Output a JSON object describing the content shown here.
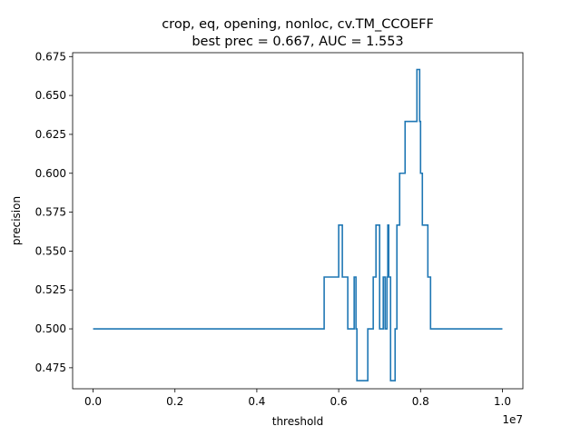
{
  "chart_data": {
    "type": "line",
    "title_line1": "crop, eq, opening, nonloc, cv.TM_CCOEFF",
    "title_line2": "best prec = 0.667, AUC = 1.553",
    "xlabel": "threshold",
    "ylabel": "precision",
    "x_offset_label": "1e7",
    "xlim": [
      -0.05,
      1.05
    ],
    "ylim": [
      0.4615,
      0.6775
    ],
    "x_ticks": [
      0.0,
      0.2,
      0.4,
      0.6,
      0.8,
      1.0
    ],
    "x_tick_labels": [
      "0.0",
      "0.2",
      "0.4",
      "0.6",
      "0.8",
      "1.0"
    ],
    "y_ticks": [
      0.475,
      0.5,
      0.525,
      0.55,
      0.575,
      0.6,
      0.625,
      0.65,
      0.675
    ],
    "y_tick_labels": [
      "0.475",
      "0.500",
      "0.525",
      "0.550",
      "0.575",
      "0.600",
      "0.625",
      "0.650",
      "0.675"
    ],
    "grid": false,
    "line_color": "#1f77b4",
    "series": [
      {
        "x": [
          0.0,
          0.5645,
          0.5645,
          0.6,
          0.6,
          0.6089,
          0.6089,
          0.6222,
          0.6222,
          0.6378,
          0.6378,
          0.6422,
          0.6422,
          0.6445,
          0.6445,
          0.6711,
          0.6711,
          0.6844,
          0.6844,
          0.6911,
          0.6911,
          0.7,
          0.7,
          0.7089,
          0.7089,
          0.7133,
          0.7133,
          0.7178,
          0.7178,
          0.72,
          0.72,
          0.7222,
          0.7222,
          0.7244,
          0.7244,
          0.7267,
          0.7267,
          0.7378,
          0.7378,
          0.7422,
          0.7422,
          0.7489,
          0.7489,
          0.7622,
          0.7622,
          0.7911,
          0.7911,
          0.7978,
          0.7978,
          0.8,
          0.8,
          0.8044,
          0.8044,
          0.8178,
          0.8178,
          0.8244,
          0.8244,
          0.8311,
          0.8311,
          1.0
        ],
        "y": [
          0.5,
          0.5,
          0.5333,
          0.5333,
          0.5667,
          0.5667,
          0.5333,
          0.5333,
          0.5,
          0.5,
          0.5333,
          0.5333,
          0.5,
          0.5,
          0.4667,
          0.4667,
          0.5,
          0.5,
          0.5333,
          0.5333,
          0.5667,
          0.5667,
          0.5,
          0.5,
          0.5333,
          0.5333,
          0.5,
          0.5,
          0.5333,
          0.5333,
          0.5667,
          0.5667,
          0.5333,
          0.5333,
          0.5333,
          0.5333,
          0.4667,
          0.4667,
          0.5,
          0.5,
          0.5667,
          0.5667,
          0.6,
          0.6,
          0.6333,
          0.6333,
          0.6667,
          0.6667,
          0.6333,
          0.6333,
          0.6,
          0.6,
          0.5667,
          0.5667,
          0.5333,
          0.5333,
          0.5,
          0.5,
          0.5,
          0.5
        ]
      }
    ]
  }
}
